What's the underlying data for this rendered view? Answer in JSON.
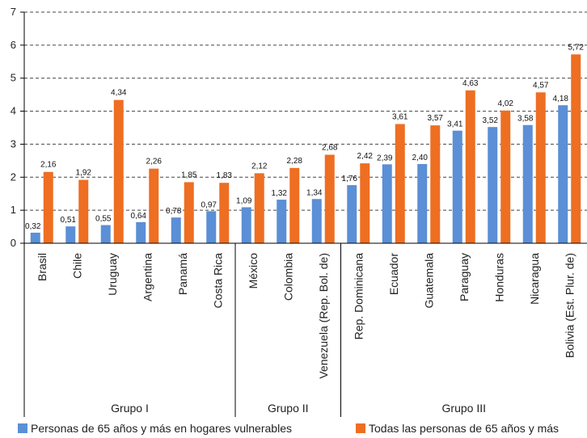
{
  "chart_data": {
    "type": "bar",
    "categories": [
      "Brasil",
      "Chile",
      "Uruguay",
      "Argentina",
      "Panamá",
      "Costa Rica",
      "México",
      "Colombia",
      "Venezuela (Rep. Bol. de)",
      "Rep. Dominicana",
      "Ecuador",
      "Guatemala",
      "Paraguay",
      "Honduras",
      "Nicaragua",
      "Bolivia (Est. Plur. de)"
    ],
    "groups": [
      {
        "label": "Grupo I",
        "count": 6
      },
      {
        "label": "Grupo II",
        "count": 3
      },
      {
        "label": "Grupo III",
        "count": 7
      }
    ],
    "series": [
      {
        "name": "Personas de 65 años y más en hogares vulnerables",
        "color": "#5b8fd6",
        "values": [
          0.32,
          0.51,
          0.55,
          0.64,
          0.78,
          0.97,
          1.09,
          1.32,
          1.34,
          1.76,
          2.39,
          2.4,
          3.41,
          3.52,
          3.58,
          4.18
        ],
        "labels": [
          "0,32",
          "0,51",
          "0,55",
          "0,64",
          "0,78",
          "0,97",
          "1,09",
          "1,32",
          "1,34",
          "1,76",
          "2,39",
          "2,40",
          "3,41",
          "3,52",
          "3,58",
          "4,18"
        ]
      },
      {
        "name": "Todas las personas de 65 años y más",
        "color": "#ee6e22",
        "values": [
          2.16,
          1.92,
          4.34,
          2.26,
          1.85,
          1.83,
          2.12,
          2.28,
          2.68,
          2.42,
          3.61,
          3.57,
          4.63,
          4.02,
          4.57,
          5.72
        ],
        "labels": [
          "2,16",
          "1,92",
          "4,34",
          "2,26",
          "1,85",
          "1,83",
          "2,12",
          "2,28",
          "2,68",
          "2,42",
          "3,61",
          "3,57",
          "4,63",
          "4,02",
          "4,57",
          "5,72"
        ]
      }
    ],
    "yticks": [
      "0",
      "1",
      "2",
      "3",
      "4",
      "5",
      "6",
      "7"
    ],
    "ylim": [
      0,
      7
    ],
    "grid": true,
    "legend_position": "bottom"
  }
}
